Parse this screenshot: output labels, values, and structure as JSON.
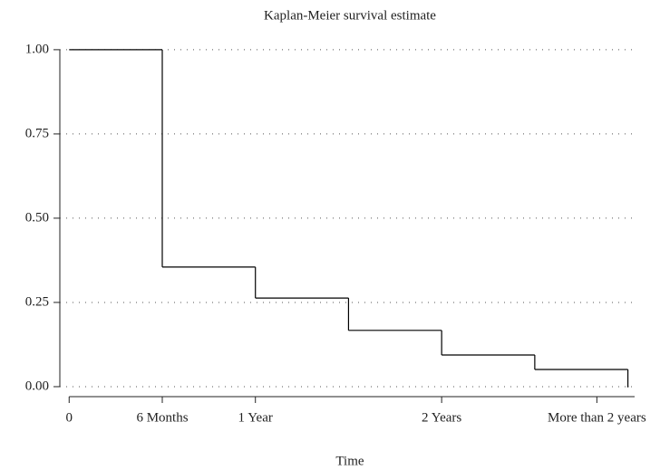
{
  "chart_data": {
    "type": "step",
    "title": "Kaplan-Meier survival estimate",
    "x_label": "Time",
    "x": [
      0,
      6,
      12,
      18,
      24,
      30,
      36
    ],
    "values": [
      1,
      0.355,
      0.263,
      0.167,
      0.094,
      0.051,
      0
    ],
    "color": "#000000",
    "xlim": [
      -0.6,
      36.9
    ],
    "xticks": [
      {
        "value": 0,
        "label": "0"
      },
      {
        "value": 6,
        "label": "6 Months"
      },
      {
        "value": 12,
        "label": "1 Year"
      },
      {
        "value": 24,
        "label": "2 Years"
      },
      {
        "value": 34,
        "label": "More than 2 years"
      }
    ],
    "ylim": [
      -0.035,
      1.04
    ],
    "yticks": [
      {
        "value": 0,
        "label": "0.00"
      },
      {
        "value": 0.25,
        "label": "0.25"
      },
      {
        "value": 0.5,
        "label": "0.50"
      },
      {
        "value": 0.75,
        "label": "0.75"
      },
      {
        "value": 1,
        "label": "1.00"
      }
    ],
    "grid": true
  }
}
